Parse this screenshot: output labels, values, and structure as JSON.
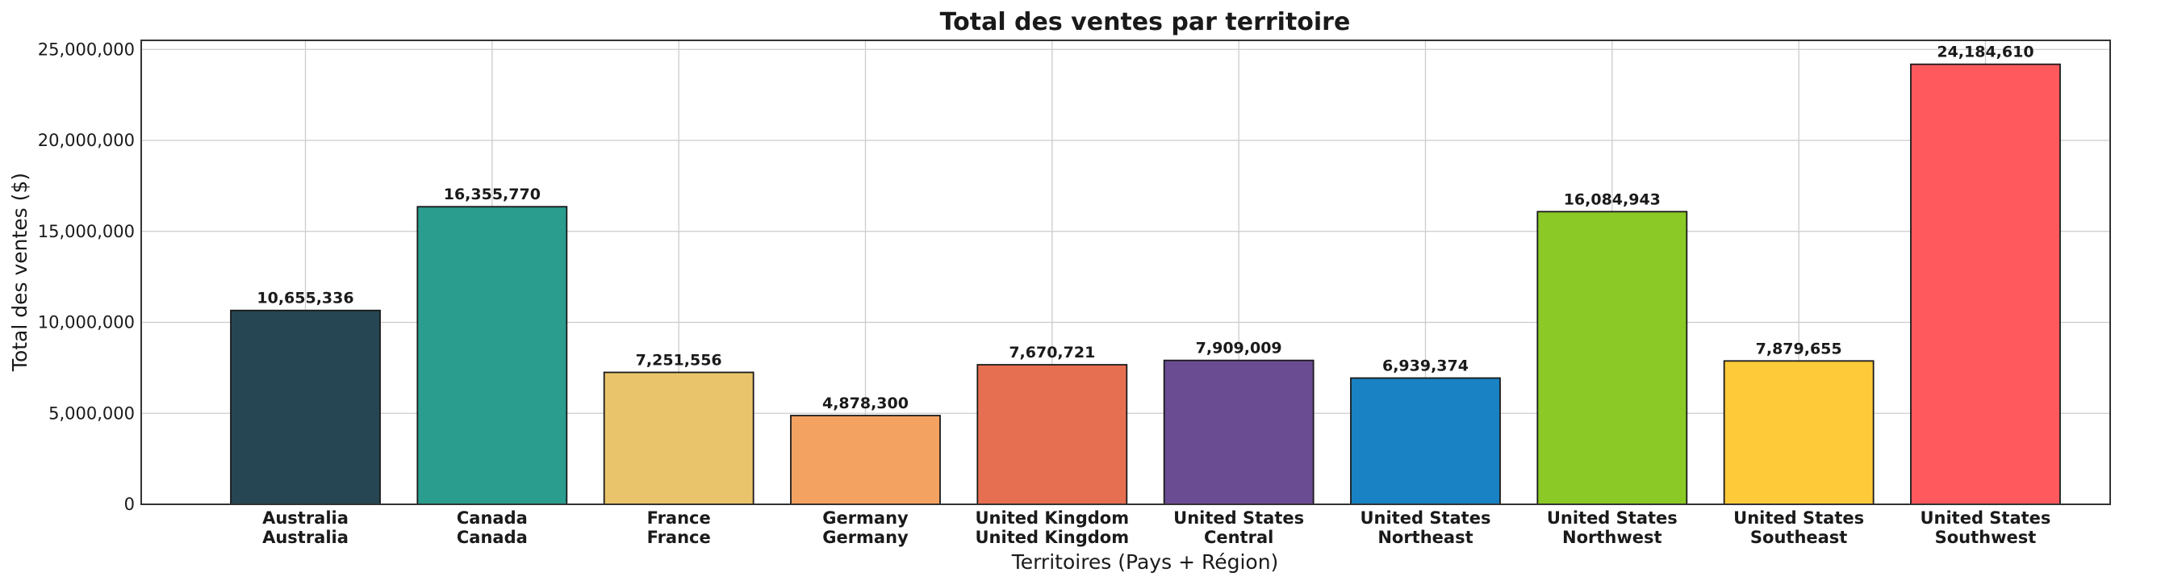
{
  "chart_data": {
    "type": "bar",
    "title": "Total des ventes par territoire",
    "xlabel": "Territoires (Pays + Région)",
    "ylabel": "Total des ventes ($)",
    "ylim": [
      0,
      25500000
    ],
    "yticks": [
      0,
      5000000,
      10000000,
      15000000,
      20000000,
      25000000
    ],
    "grid": true,
    "categories": [
      [
        "Australia",
        "Australia"
      ],
      [
        "Canada",
        "Canada"
      ],
      [
        "France",
        "France"
      ],
      [
        "Germany",
        "Germany"
      ],
      [
        "United Kingdom",
        "United Kingdom"
      ],
      [
        "United States",
        "Central"
      ],
      [
        "United States",
        "Northeast"
      ],
      [
        "United States",
        "Northwest"
      ],
      [
        "United States",
        "Southeast"
      ],
      [
        "United States",
        "Southwest"
      ]
    ],
    "values": [
      10655336,
      16355770,
      7251556,
      4878300,
      7670721,
      7909009,
      6939374,
      16084943,
      7879655,
      24184610
    ],
    "colors": [
      "#264653",
      "#2a9d8f",
      "#e9c46a",
      "#f4a261",
      "#e76f51",
      "#6a4c93",
      "#1982c4",
      "#8ac926",
      "#ffca3a",
      "#ff595e"
    ]
  }
}
